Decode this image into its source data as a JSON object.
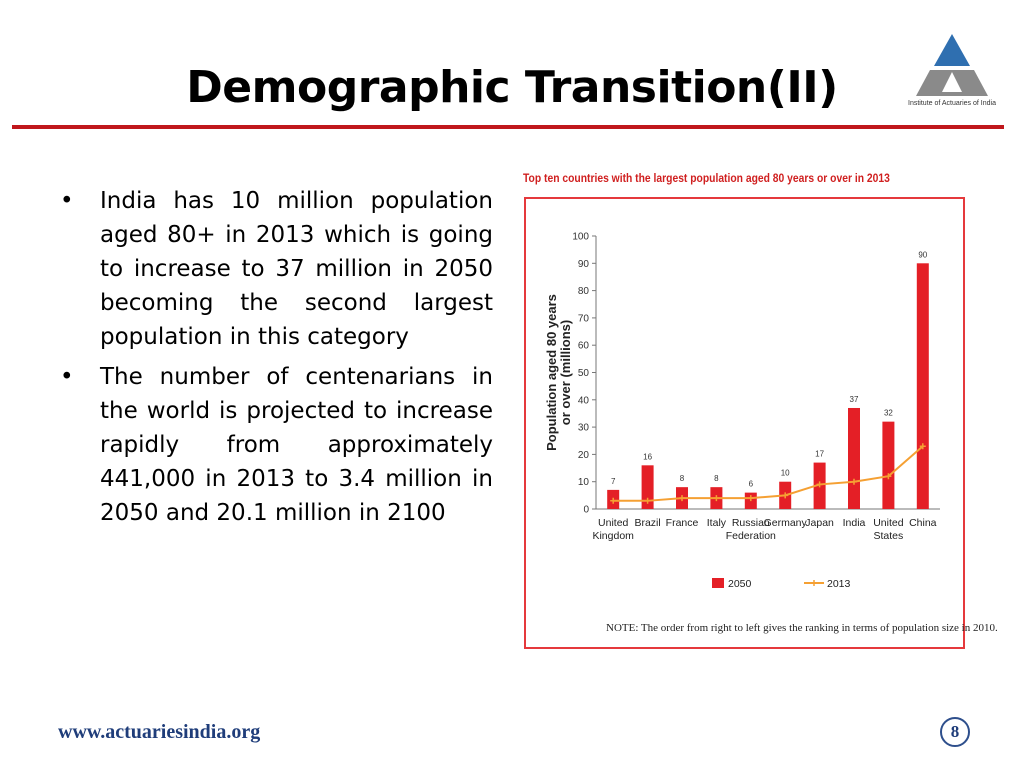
{
  "slide": {
    "title": "Demographic Transition(II)",
    "logo_caption": "Institute of Actuaries of India",
    "footer_url": "www.actuariesindia.org",
    "page_number": "8"
  },
  "bullets": [
    "India has 10 million population aged 80+ in 2013 which is going to increase to 37 million in 2050 becoming the second largest population in this category",
    "The number of centenarians in the world is projected to increase rapidly from approximately 441,000 in 2013 to 3.4 million in 2050 and 20.1 million in 2100"
  ],
  "chart_caption": "Top ten countries with the largest population aged 80 years or over in 2013",
  "note": "NOTE: The order from right to left gives the ranking in terms of population size in 2010.",
  "colors": {
    "title_rule": "#c0171c",
    "bar_2050": "#e41f26",
    "line_2013": "#f5a033",
    "chart_border": "#e5393c",
    "caption": "#d02020",
    "footer": "#1f3d7a",
    "logo_blue": "#2f6fb0",
    "logo_gray": "#8a8a8a"
  },
  "chart_data": {
    "type": "bar",
    "categories": [
      "United Kingdom",
      "Brazil",
      "France",
      "Italy",
      "Russian Federation",
      "Germany",
      "Japan",
      "India",
      "United States",
      "China"
    ],
    "category_lines": [
      [
        "United",
        "Kingdom"
      ],
      [
        "Brazil"
      ],
      [
        "France"
      ],
      [
        "Italy"
      ],
      [
        "Russian",
        "Federation"
      ],
      [
        "Germany"
      ],
      [
        "Japan"
      ],
      [
        "India"
      ],
      [
        "United",
        "States"
      ],
      [
        "China"
      ]
    ],
    "series": [
      {
        "name": "2050",
        "type": "bar",
        "values": [
          7,
          16,
          8,
          8,
          6,
          10,
          17,
          37,
          32,
          90
        ]
      },
      {
        "name": "2013",
        "type": "line",
        "values": [
          3,
          3,
          4,
          4,
          4,
          5,
          9,
          10,
          12,
          23
        ]
      }
    ],
    "data_labels": [
      "7",
      "16",
      "8",
      "8",
      "6",
      "10",
      "17",
      "37",
      "32",
      "90"
    ],
    "ylabel_lines": [
      "Population aged 80 years",
      "or over (millions)"
    ],
    "ylim": [
      0,
      100
    ],
    "yticks": [
      0,
      10,
      20,
      30,
      40,
      50,
      60,
      70,
      80,
      90,
      100
    ],
    "legend": [
      "2050",
      "2013"
    ],
    "legend_position": "bottom",
    "grid": false
  }
}
